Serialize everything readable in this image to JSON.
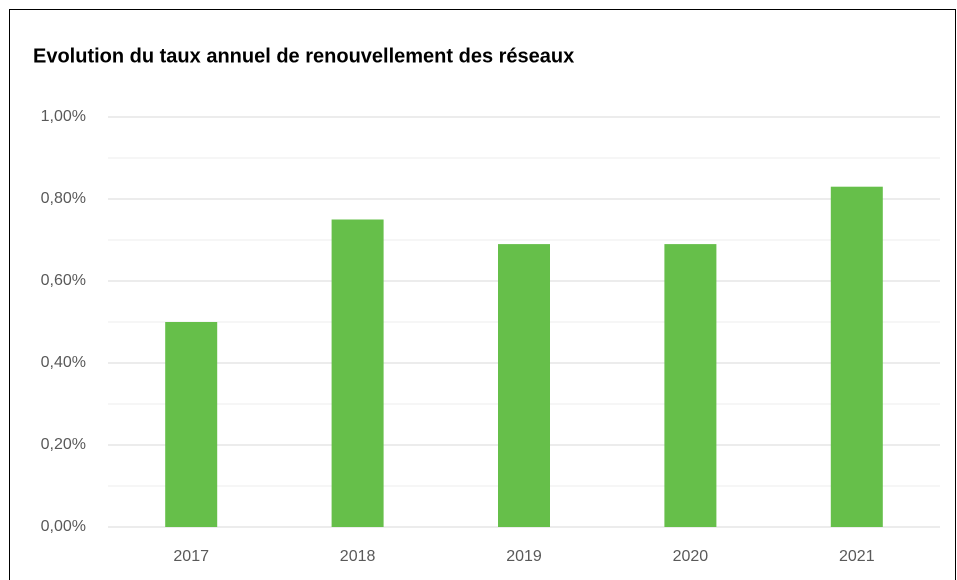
{
  "chart_data": {
    "type": "bar",
    "title": "Evolution du taux annuel de renouvellement des réseaux",
    "categories": [
      "2017",
      "2018",
      "2019",
      "2020",
      "2021"
    ],
    "values": [
      0.5,
      0.75,
      0.69,
      0.69,
      0.83
    ],
    "color": "#66bf4a",
    "ylim": [
      0,
      1
    ],
    "yticks": [
      {
        "value": 0,
        "label": "0,00%"
      },
      {
        "value": 0.2,
        "label": "0,20%"
      },
      {
        "value": 0.4,
        "label": "0,40%"
      },
      {
        "value": 0.6,
        "label": "0,60%"
      },
      {
        "value": 0.8,
        "label": "0,80%"
      },
      {
        "value": 1,
        "label": "1,00%"
      }
    ],
    "minor_yticks": [
      0.1,
      0.3,
      0.5,
      0.7,
      0.9
    ],
    "grid": true
  }
}
